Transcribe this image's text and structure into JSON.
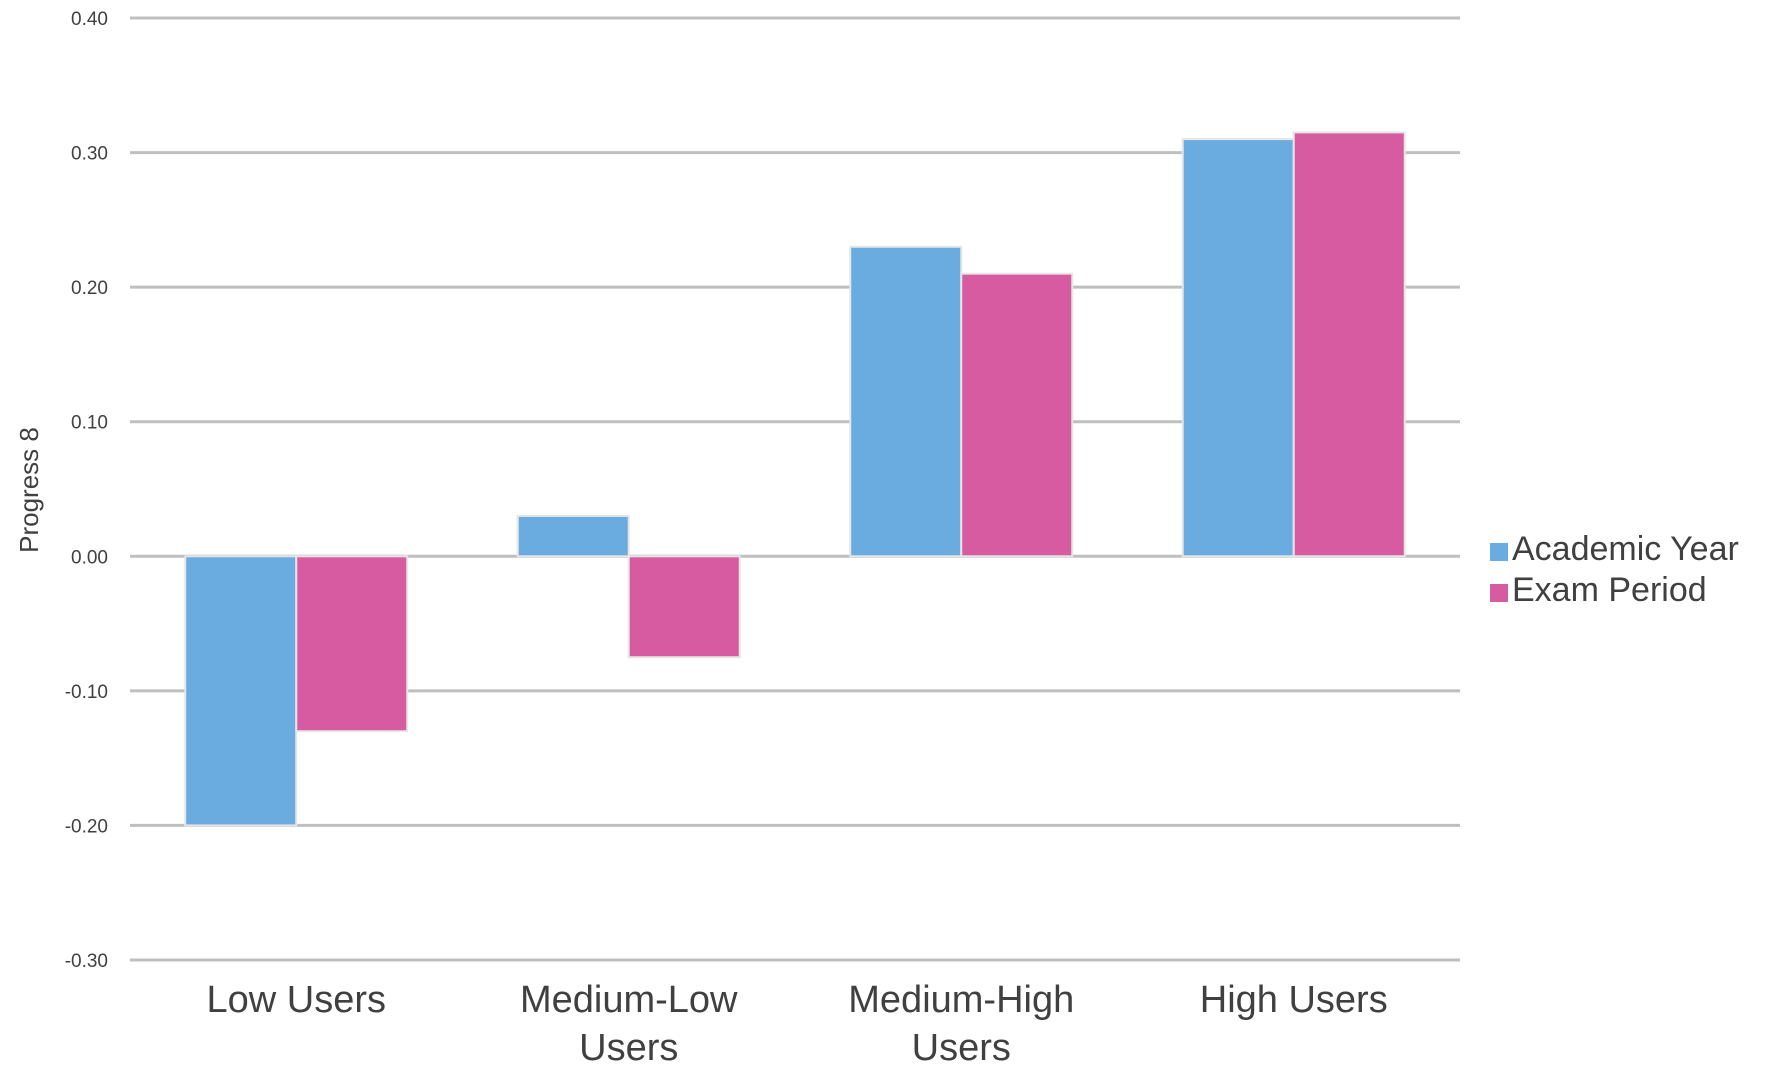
{
  "chart_data": {
    "type": "bar",
    "ylabel": "Progress 8",
    "xlabel": "",
    "ylim": [
      -0.3,
      0.4
    ],
    "yticks": [
      "0.40",
      "0.30",
      "0.20",
      "0.10",
      "0.00",
      "-0.10",
      "-0.20",
      "-0.30"
    ],
    "ytick_values": [
      0.4,
      0.3,
      0.2,
      0.1,
      0.0,
      -0.1,
      -0.2,
      -0.3
    ],
    "categories": [
      [
        "Low Users"
      ],
      [
        "Medium-Low",
        "Users"
      ],
      [
        "Medium-High",
        "Users"
      ],
      [
        "High Users"
      ]
    ],
    "series": [
      {
        "name": "Academic Year",
        "color": "#6aace0",
        "values": [
          -0.2,
          0.03,
          0.23,
          0.31
        ]
      },
      {
        "name": "Exam Period",
        "color": "#d75ba0",
        "values": [
          -0.13,
          -0.075,
          0.21,
          0.315
        ]
      }
    ],
    "grid": true,
    "legend_position": "right"
  }
}
